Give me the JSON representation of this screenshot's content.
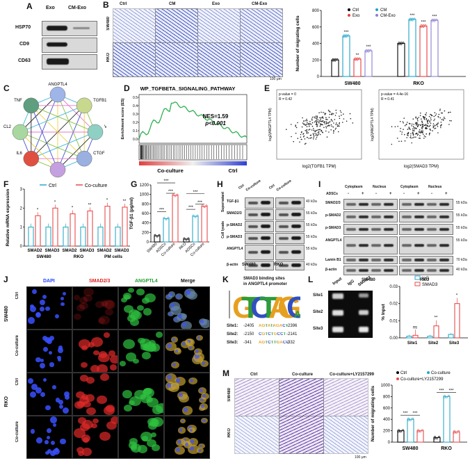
{
  "panels": {
    "A": "A",
    "B": "B",
    "C": "C",
    "D": "D",
    "E": "E",
    "F": "F",
    "G": "G",
    "H": "H",
    "I": "I",
    "J": "J",
    "K": "K",
    "L": "L",
    "M": "M"
  },
  "panelA": {
    "cols": [
      "Exo",
      "CM-Exo"
    ],
    "rows": [
      "HSP70",
      "CD9",
      "CD63"
    ]
  },
  "panelB": {
    "cols": [
      "Ctrl",
      "CM",
      "Exo",
      "CM-Exo"
    ],
    "rows": [
      "SW480",
      "RKO"
    ],
    "scale": "100 μm"
  },
  "panelC": {
    "nodes": [
      "ANGPTL4",
      "TGFB1",
      "VEGFA",
      "CTGF",
      "CXCL8",
      "IL6",
      "CCL2",
      "TNF"
    ]
  },
  "panelD": {
    "title": "WP_TGFBETA_SIGNALING_PATHWAY",
    "ylabel": "Enrichment score (ES)",
    "nes": "NES=1.59",
    "p": "p<0.001",
    "left": "Co-culture",
    "right": "Ctrl",
    "yticks": [
      "0.5",
      "0.4",
      "0.3",
      "0.2",
      "0.1",
      "0.0"
    ]
  },
  "panelE": {
    "plot1": {
      "stat1": "p-value = 0",
      "stat2": "R = 0.42",
      "xlabel": "log2(TGFB1 TPM)",
      "ylabel": "log2(ANGPTL4 TPM)"
    },
    "plot2": {
      "stat1": "p-value = 4.4e-16",
      "stat2": "R = 0.41",
      "xlabel": "log2(SMAD3 TPM)",
      "ylabel": "log2(ANGPTL4 TPM)"
    }
  },
  "panelH": {
    "cols": [
      "Ctrl",
      "Co-culture",
      "Ctrl",
      "Co-culture"
    ],
    "groups": [
      "SW480",
      "RKO"
    ],
    "side1": "Supernatant",
    "side2": "Cell lysate",
    "rows": [
      "TGF-β1",
      "SMAD2/3",
      "p-SMAD2",
      "p-SMAD3",
      "ANGPTL4",
      "β-actin"
    ],
    "kda": [
      "40 kDa",
      "55 kDa",
      "55 kDa",
      "55 kDa",
      "55 kDa",
      "40 kDa"
    ]
  },
  "panelI": {
    "adsc": "ADSCs",
    "frac": [
      "Cytoplasm",
      "Nucleus",
      "Cytoplasm",
      "Nucleus"
    ],
    "signs": [
      "-",
      "+",
      "-",
      "+",
      "-",
      "+",
      "-",
      "+"
    ],
    "rows": [
      "SMAD2/3",
      "p-SMAD2",
      "p-SMAD3",
      "ANGPTL4",
      "Lamin B1",
      "β-actin"
    ],
    "kda": [
      "55 kDa",
      "55 kDa",
      "55 kDa",
      "55 kDa",
      "70 kDa",
      "40 kDa"
    ],
    "groups": [
      "SW480",
      "RKO"
    ]
  },
  "panelJ": {
    "cols": [
      "DAPI",
      "SMAD2/3",
      "ANGPTL4",
      "Merge"
    ],
    "rows": [
      "Ctrl",
      "Co-culture",
      "Ctrl",
      "Co-culture"
    ],
    "groups": [
      "SW480",
      "RKO"
    ],
    "scale": "20 μm"
  },
  "panelK": {
    "title1": "SMAD3 binding sites",
    "title2": "in ANGPTL4 promoter",
    "sites": [
      {
        "label": "Site1:",
        "start": "-2405",
        "seq": "AGTATAGACT",
        "end": "-2396"
      },
      {
        "label": "Site2:",
        "start": "-2150",
        "seq": "CGTCTGCCT",
        "end": "-2141"
      },
      {
        "label": "Site3:",
        "start": "-341",
        "seq": "AGTCTTGACC",
        "end": "-332"
      }
    ]
  },
  "panelL": {
    "cols": [
      "Input",
      "IgG",
      "SMAD3"
    ],
    "rows": [
      "Site1",
      "Site2",
      "Site3"
    ]
  },
  "panelM": {
    "cols": [
      "Ctrl",
      "Co-culture",
      "Co-culture+LY2157299"
    ],
    "rows": [
      "SW480",
      "RKO"
    ],
    "scale": "100 μm"
  },
  "chart_data": [
    {
      "id": "B",
      "type": "bar",
      "title": "",
      "ylabel": "Number of migrating cells",
      "categories": [
        "SW480",
        "RKO"
      ],
      "ylim": [
        0,
        800
      ],
      "yticks": [
        0,
        200,
        400,
        600,
        800
      ],
      "series": [
        {
          "name": "Ctrl",
          "color": "#000000",
          "values": [
            200,
            400
          ]
        },
        {
          "name": "CM",
          "color": "#1aa3c8",
          "values": [
            490,
            690
          ]
        },
        {
          "name": "Exo",
          "color": "#e83c3c",
          "values": [
            210,
            610
          ]
        },
        {
          "name": "CM-Exo",
          "color": "#8a7fd1",
          "values": [
            310,
            680
          ]
        }
      ],
      "sig": [
        [
          "",
          "***",
          "**",
          "***"
        ],
        [
          "",
          "***",
          "***",
          "***"
        ]
      ]
    },
    {
      "id": "F",
      "type": "bar",
      "title": "",
      "ylabel": "Relative mRNA expression",
      "categories": [
        "SMAD2",
        "SMAD3",
        "SMAD2",
        "SMAD3",
        "SMAD2",
        "SMAD3"
      ],
      "groups": [
        "SW480",
        "RKO",
        "PM cells"
      ],
      "ylim": [
        0,
        3
      ],
      "yticks": [
        0,
        1,
        2,
        3
      ],
      "series": [
        {
          "name": "Ctrl",
          "color": "#2aa8c8",
          "values": [
            1.0,
            1.0,
            1.0,
            1.0,
            1.0,
            1.0
          ]
        },
        {
          "name": "Co-culture",
          "color": "#e84b4b",
          "values": [
            1.6,
            2.0,
            1.7,
            1.85,
            2.1,
            2.05
          ]
        }
      ],
      "sig": [
        "*",
        "*",
        "*",
        "**",
        "*",
        "**"
      ]
    },
    {
      "id": "G",
      "type": "bar",
      "title": "",
      "ylabel": "TGF-β1 (pg/ml)",
      "categories": [
        "SW480",
        "ADSCs",
        "Co-culture",
        "RKO",
        "ADSCs",
        "Co-culture"
      ],
      "ylim": [
        0,
        1200
      ],
      "yticks": [
        0,
        200,
        400,
        600,
        800,
        1000,
        1200
      ],
      "values": [
        130,
        490,
        980,
        60,
        540,
        750
      ],
      "colors": [
        "#000000",
        "#2aa8c8",
        "#e84b4b",
        "#000000",
        "#2aa8c8",
        "#e84b4b"
      ],
      "sig": [
        "***",
        "***",
        "***",
        "***",
        "***",
        "***"
      ]
    },
    {
      "id": "L",
      "type": "bar",
      "title": "",
      "ylabel": "% Input",
      "categories": [
        "Site1",
        "Site2",
        "Site3"
      ],
      "ylim": [
        0,
        0.03
      ],
      "yticks": [
        0,
        0.01,
        0.02,
        0.03
      ],
      "series": [
        {
          "name": "IgG",
          "color": "#2aa8c8",
          "values": [
            0.001,
            0.001,
            0.002
          ]
        },
        {
          "name": "SMAD3",
          "color": "#e84b4b",
          "values": [
            0.0015,
            0.007,
            0.02
          ]
        }
      ],
      "sig": [
        "ns",
        "**",
        "*"
      ]
    },
    {
      "id": "M",
      "type": "bar",
      "title": "",
      "ylabel": "Number of migrating cells",
      "categories": [
        "SW480",
        "RKO"
      ],
      "ylim": [
        0,
        1000
      ],
      "yticks": [
        0,
        200,
        400,
        600,
        800,
        1000
      ],
      "series": [
        {
          "name": "Ctrl",
          "color": "#000000",
          "values": [
            200,
            80
          ]
        },
        {
          "name": "Co-culture",
          "color": "#2aa8c8",
          "values": [
            400,
            800
          ]
        },
        {
          "name": "Co-culture+LY2157299",
          "color": "#e84b4b",
          "values": [
            200,
            180
          ]
        }
      ],
      "sig": [
        [
          "***",
          "***"
        ],
        [
          "***",
          "***"
        ]
      ]
    }
  ]
}
